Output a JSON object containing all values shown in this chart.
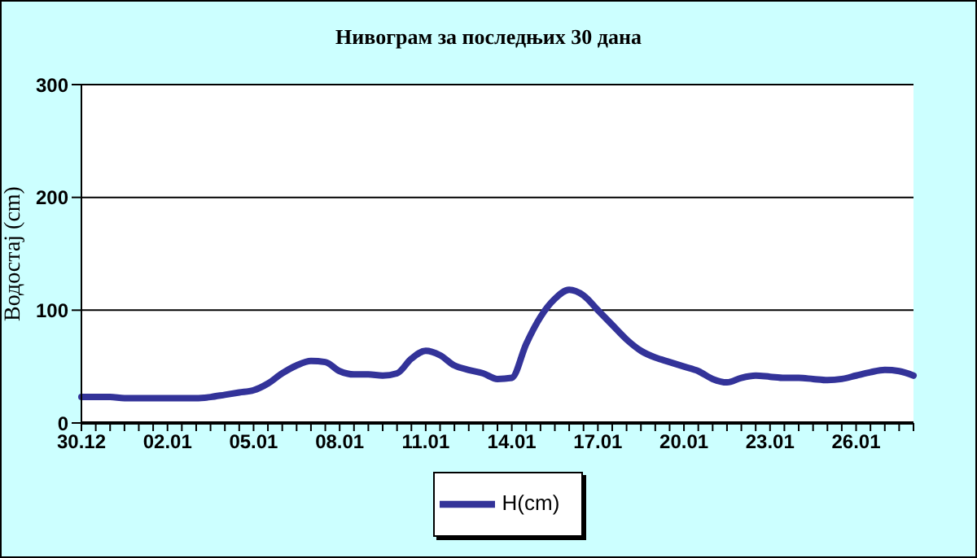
{
  "chart_data": {
    "type": "line",
    "title": "Нивограм за последњих 30 дана",
    "ylabel": "Водостај (cm)",
    "categories": [
      "30.12",
      null,
      null,
      null,
      null,
      null,
      "02.01",
      null,
      null,
      null,
      null,
      null,
      "05.01",
      null,
      null,
      null,
      null,
      null,
      "08.01",
      null,
      null,
      null,
      null,
      null,
      "11.01",
      null,
      null,
      null,
      null,
      null,
      "14.01",
      null,
      null,
      null,
      null,
      null,
      "17.01",
      null,
      null,
      null,
      null,
      null,
      "20.01",
      null,
      null,
      null,
      null,
      null,
      "23.01",
      null,
      null,
      null,
      null,
      null,
      "26.01",
      null,
      null,
      null,
      null
    ],
    "series": [
      {
        "name": "H(cm)",
        "color": "#333399",
        "values": [
          23,
          23,
          23,
          22,
          22,
          22,
          22,
          22,
          22,
          23,
          25,
          27,
          29,
          35,
          44,
          51,
          55,
          54,
          46,
          43,
          43,
          42,
          44,
          57,
          64,
          60,
          51,
          47,
          44,
          39,
          40,
          70,
          94,
          110,
          118,
          113,
          100,
          87,
          74,
          64,
          58,
          54,
          50,
          46,
          39,
          36,
          40,
          42,
          41,
          40,
          40,
          39,
          38,
          39,
          42,
          45,
          47,
          46,
          42
        ]
      }
    ],
    "ylim": [
      0,
      300
    ],
    "yticks": [
      0,
      100,
      200,
      300
    ],
    "grid": "y",
    "legend": "bottom",
    "marker": "none",
    "line_style": "solid"
  }
}
